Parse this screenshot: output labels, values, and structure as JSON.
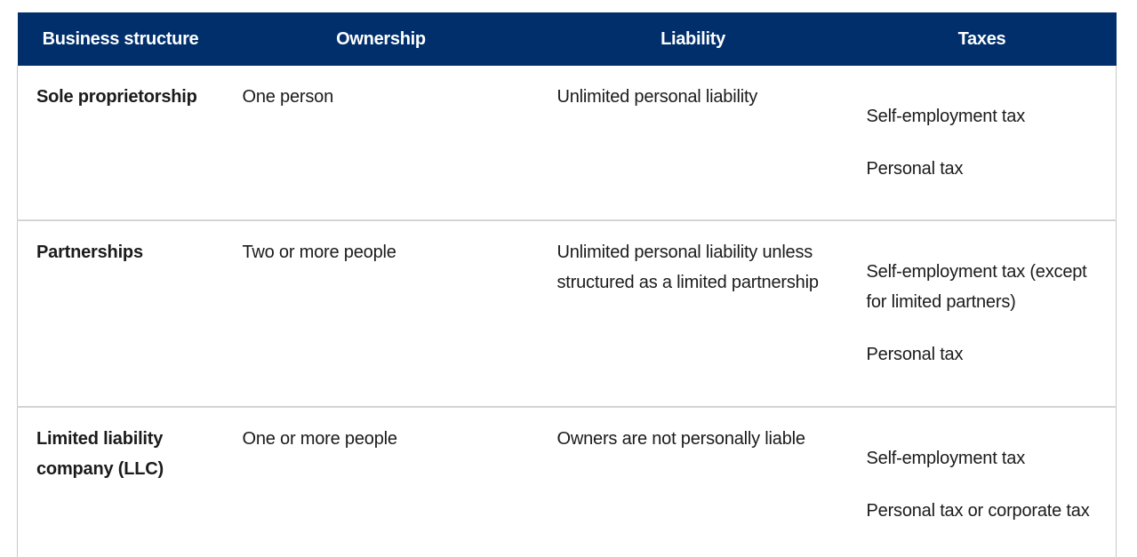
{
  "table": {
    "headers": [
      "Business structure",
      "Ownership",
      "Liability",
      "Taxes"
    ],
    "rows": [
      {
        "structure": "Sole proprietorship",
        "ownership": "One person",
        "liability": "Unlimited personal liability",
        "taxes": [
          "Self-employment tax",
          "Personal tax"
        ]
      },
      {
        "structure": "Partnerships",
        "ownership": "Two or more people",
        "liability": "Unlimited personal liability unless structured as a limited partnership",
        "taxes": [
          "Self-employment tax (except for limited partners)",
          "Personal tax"
        ]
      },
      {
        "structure": "Limited liability company (LLC)",
        "ownership": "One or more people",
        "liability": "Owners are not personally liable",
        "taxes": [
          "Self-employment tax",
          "Personal tax or corporate tax"
        ]
      }
    ]
  },
  "colors": {
    "header_bg": "#002f6c",
    "header_text": "#ffffff",
    "body_text": "#1b1b1b",
    "row_border": "#d4d4d4"
  }
}
